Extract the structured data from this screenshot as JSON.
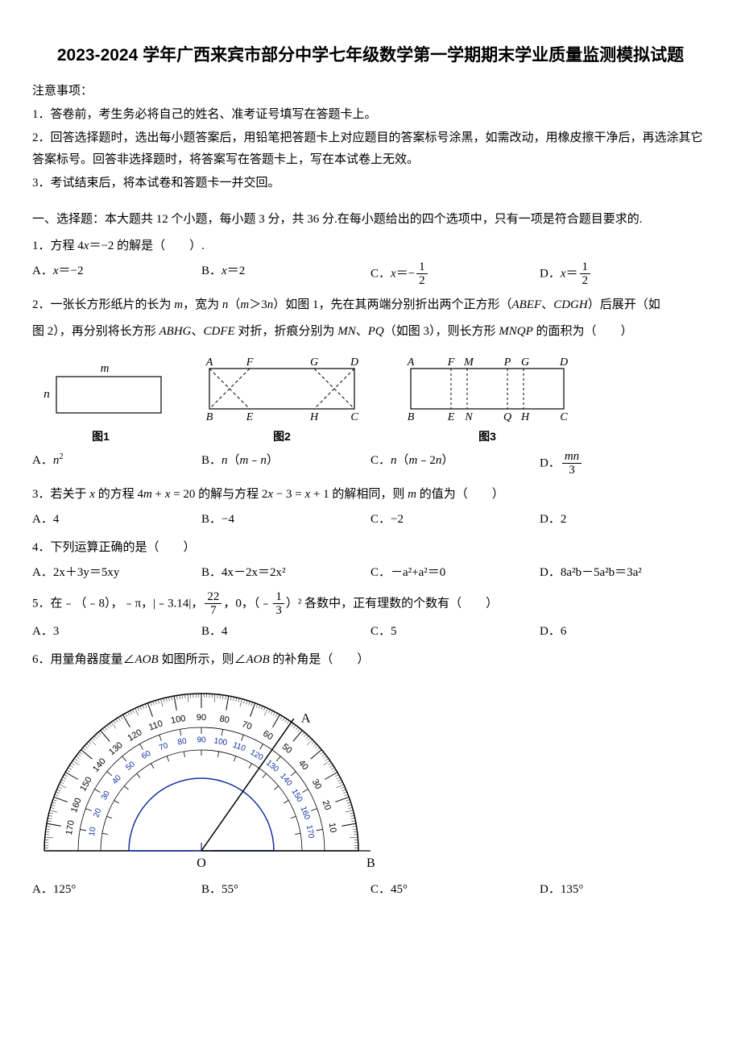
{
  "title": "2023-2024 学年广西来宾市部分中学七年级数学第一学期期末学业质量监测模拟试题",
  "notice_head": "注意事项：",
  "notices": [
    "1．答卷前，考生务必将自己的姓名、准考证号填写在答题卡上。",
    "2．回答选择题时，选出每小题答案后，用铅笔把答题卡上对应题目的答案标号涂黑，如需改动，用橡皮擦干净后，再选涂其它答案标号。回答非选择题时，将答案写在答题卡上，写在本试卷上无效。",
    "3．考试结束后，将本试卷和答题卡一并交回。"
  ],
  "section1": "一、选择题：本大题共 12 个小题，每小题 3 分，共 36 分.在每小题给出的四个选项中，只有一项是符合题目要求的.",
  "q1": {
    "stem_pre": "1．方程 4",
    "stem_x": "x",
    "stem_post": "＝−2 的解是（　　）."
  },
  "q1opts": {
    "A_pre": "A．",
    "A_x": "x",
    "A_post": "＝−2",
    "B_pre": "B．",
    "B_x": "x",
    "B_post": "＝2",
    "C_pre": "C．",
    "C_x": "x",
    "C_eq": "＝−",
    "C_num": "1",
    "C_den": "2",
    "D_pre": "D．",
    "D_x": "x",
    "D_eq": "＝",
    "D_num": "1",
    "D_den": "2"
  },
  "q2": {
    "line1_a": "2．一张长方形纸片的长为 ",
    "line1_m": "m",
    "line1_b": "，宽为 ",
    "line1_n": "n",
    "line1_c": "（",
    "line1_m2": "m",
    "line1_d": "＞3",
    "line1_n2": "n",
    "line1_e": "）如图 1，先在其两端分别折出两个正方形（",
    "line1_i1": "ABEF",
    "line1_f": "、",
    "line1_i2": "CDGH",
    "line1_g": "）后展开（如",
    "line2_a": "图 2），再分别将长方形 ",
    "line2_i1": "ABHG",
    "line2_b": "、",
    "line2_i2": "CDFE",
    "line2_c": " 对折，折痕分别为 ",
    "line2_i3": "MN",
    "line2_d": "、",
    "line2_i4": "PQ",
    "line2_e": "（如图 3），则长方形 ",
    "line2_i5": "MNQP",
    "line2_f": " 的面积为（　　）"
  },
  "fig": {
    "cap1": "图1",
    "cap2": "图2",
    "cap3": "图3",
    "m": "m",
    "n": "n",
    "A": "A",
    "B": "B",
    "C": "C",
    "D": "D",
    "E": "E",
    "F": "F",
    "G": "G",
    "H": "H",
    "M": "M",
    "N": "N",
    "P": "P",
    "Q": "Q"
  },
  "q2opts": {
    "A_pre": "A．",
    "A_n": "n",
    "A_sup": "2",
    "B_pre": "B．",
    "B_n": "n",
    "B_paren": "（",
    "B_m": "m",
    "B_mid": "﹣",
    "B_n2": "n",
    "B_close": "）",
    "C_pre": "C．",
    "C_n": "n",
    "C_paren": "（",
    "C_m": "m",
    "C_mid": "﹣2",
    "C_n2": "n",
    "C_close": "）",
    "D_pre": "D．",
    "D_num": "mn",
    "D_den": "3"
  },
  "q3": {
    "stem": "3．若关于 x 的方程 4m + x = 20 的解与方程 2x − 3 = x + 1 的解相同，则 m 的值为（　　）"
  },
  "q3opts": {
    "A": "A．4",
    "B": "B．−4",
    "C": "C．−2",
    "D": "D．2"
  },
  "q4": {
    "stem": "4．下列运算正确的是（　　）"
  },
  "q4opts": {
    "A": "A．2x＋3y＝5xy",
    "B": "B．4x－2x＝2x²",
    "C": "C．－a²+a²＝0",
    "D": "D．8a²b－5a²b＝3a²"
  },
  "q5": {
    "pre": "5．在﹣（﹣8），﹣π，|﹣3.14|，",
    "f1n": "22",
    "f1d": "7",
    "mid": "，0，（﹣",
    "f2n": "1",
    "f2d": "3",
    "post": "）² 各数中，正有理数的个数有（　　）"
  },
  "q5opts": {
    "A": "A．3",
    "B": "B．4",
    "C": "C．5",
    "D": "D．6"
  },
  "q6": {
    "stem": "6．用量角器度量∠AOB 如图所示，则∠AOB 的补角是（　　）"
  },
  "q6opts": {
    "A": "A．125°",
    "B": "B．55°",
    "C": "C．45°",
    "D": "D．135°"
  },
  "protractor": {
    "labels": [
      "O",
      "A",
      "B"
    ],
    "outer": [
      10,
      20,
      30,
      40,
      50,
      60,
      70,
      80,
      90,
      100,
      110,
      120,
      130,
      140,
      150,
      160,
      170
    ],
    "inner": [
      170,
      160,
      150,
      140,
      130,
      120,
      110,
      100,
      90,
      80,
      70,
      60,
      50,
      40,
      30,
      20,
      10
    ]
  }
}
